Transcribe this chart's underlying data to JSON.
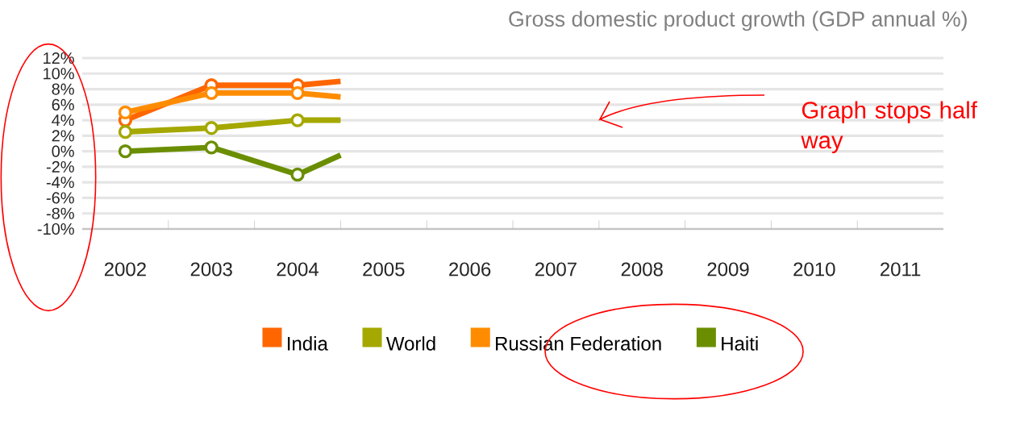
{
  "chart_data": {
    "type": "line",
    "title": "Gross domestic product growth (GDP annual %)",
    "xlim": [
      2001.5,
      2011.5
    ],
    "xticks": [
      2002,
      2003,
      2004,
      2005,
      2006,
      2007,
      2008,
      2009,
      2010,
      2011
    ],
    "ylim": [
      -10,
      12
    ],
    "yticks": [
      {
        "value": -10,
        "label": "-10%"
      },
      {
        "value": -8,
        "label": "-8%"
      },
      {
        "value": -6,
        "label": "-6%"
      },
      {
        "value": -4,
        "label": "-4%"
      },
      {
        "value": -2,
        "label": "-2%"
      },
      {
        "value": 0,
        "label": "0%"
      },
      {
        "value": 2,
        "label": "2%"
      },
      {
        "value": 4,
        "label": "4%"
      },
      {
        "value": 6,
        "label": "6%"
      },
      {
        "value": 8,
        "label": "8%"
      },
      {
        "value": 10,
        "label": "10%"
      },
      {
        "value": 12,
        "label": "12%"
      }
    ],
    "grid": "y",
    "legend": "bottom",
    "marker": "circle",
    "line_style": "solid",
    "series": [
      {
        "name": "India",
        "color": "#ff6600",
        "x": [
          2002,
          2003,
          2004,
          2004.5
        ],
        "values": [
          4,
          8.5,
          8.5,
          9
        ]
      },
      {
        "name": "World",
        "color": "#a4a800",
        "x": [
          2002,
          2003,
          2004,
          2004.5
        ],
        "values": [
          2.5,
          3,
          4,
          4
        ]
      },
      {
        "name": "Russian Federation",
        "color": "#ff8c00",
        "x": [
          2002,
          2003,
          2004,
          2004.5
        ],
        "values": [
          5,
          7.5,
          7.5,
          7
        ]
      },
      {
        "name": "Haiti",
        "color": "#6b8e00",
        "x": [
          2002,
          2003,
          2004,
          2004.5
        ],
        "values": [
          0,
          0.5,
          -3,
          -0.5
        ]
      }
    ],
    "annotations": [
      "Graph stops half way"
    ]
  }
}
